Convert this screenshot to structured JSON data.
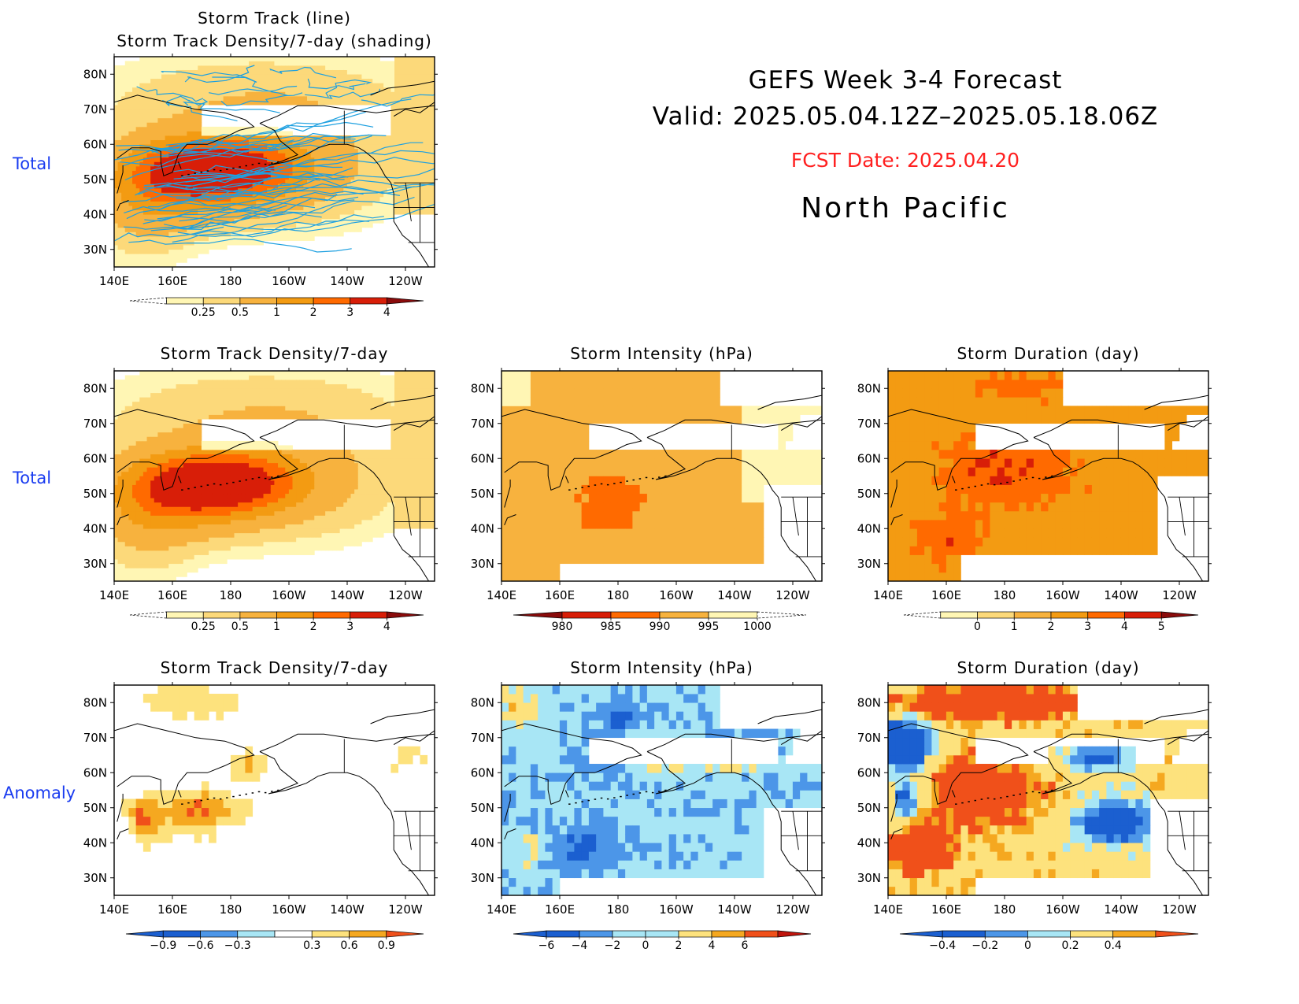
{
  "header": {
    "title": "GEFS Week 3-4 Forecast",
    "valid": "Valid: 2025.05.04.12Z–2025.05.18.06Z",
    "fcst_date": "FCST Date: 2025.04.20",
    "region": "North Pacific"
  },
  "row_labels": {
    "top": "Total",
    "middle": "Total",
    "bottom": "Anomaly"
  },
  "colors": {
    "label_blue": "#1a3cf0",
    "fcst_red": "#ff2020",
    "track_line": "#1ea0e0",
    "seq_warm": [
      "#fff6b4",
      "#fcd97a",
      "#f7b23e",
      "#f39b12",
      "#ff6a00",
      "#d81e08",
      "#8a0b0b"
    ],
    "div_cool": [
      "#1b5fd0",
      "#4c96e8",
      "#a8e6f5"
    ],
    "div_warm": [
      "#fde27d",
      "#f5a820",
      "#f0501a"
    ]
  },
  "axes": {
    "lon_ticks": [
      "140E",
      "160E",
      "180",
      "160W",
      "140W",
      "120W"
    ],
    "lat_ticks": [
      "80N",
      "70N",
      "60N",
      "50N",
      "40N",
      "30N"
    ]
  },
  "panels": [
    {
      "id": "track",
      "title_lines": [
        "Storm Track (line)",
        "Storm Track Density/7-day (shading)"
      ],
      "field": "density_total",
      "tracks": true,
      "colorbar": {
        "labels": [
          "0.25",
          "0.5",
          "1",
          "2",
          "3",
          "4"
        ],
        "palette": "seq"
      }
    },
    {
      "id": "density_total",
      "title_lines": [
        "Storm Track Density/7-day"
      ],
      "field": "density_total",
      "colorbar": {
        "labels": [
          "0.25",
          "0.5",
          "1",
          "2",
          "3",
          "4"
        ],
        "palette": "seq"
      }
    },
    {
      "id": "intensity_total",
      "title_lines": [
        "Storm Intensity (hPa)"
      ],
      "field": "intensity_total",
      "colorbar": {
        "labels": [
          "980",
          "985",
          "990",
          "995",
          "1000"
        ],
        "palette": "seq_rev"
      }
    },
    {
      "id": "duration_total",
      "title_lines": [
        "Storm Duration (day)"
      ],
      "field": "duration_total",
      "colorbar": {
        "labels": [
          "0",
          "1",
          "2",
          "3",
          "4",
          "5"
        ],
        "palette": "seq"
      }
    },
    {
      "id": "density_anom",
      "title_lines": [
        "Storm Track Density/7-day"
      ],
      "field": "density_anom",
      "colorbar": {
        "labels": [
          "-0.9",
          "-0.6",
          "-0.3",
          "0.3",
          "0.6",
          "0.9"
        ],
        "palette": "div"
      }
    },
    {
      "id": "intensity_anom",
      "title_lines": [
        "Storm Intensity (hPa)"
      ],
      "field": "intensity_anom",
      "colorbar": {
        "labels": [
          "-6",
          "-4",
          "-2",
          "0",
          "2",
          "4",
          "6"
        ],
        "palette": "div"
      }
    },
    {
      "id": "duration_anom",
      "title_lines": [
        "Storm Duration (day)"
      ],
      "field": "duration_anom",
      "colorbar": {
        "labels": [
          "-0.4",
          "-0.2",
          "0",
          "0.2",
          "0.4"
        ],
        "palette": "div"
      }
    }
  ]
}
